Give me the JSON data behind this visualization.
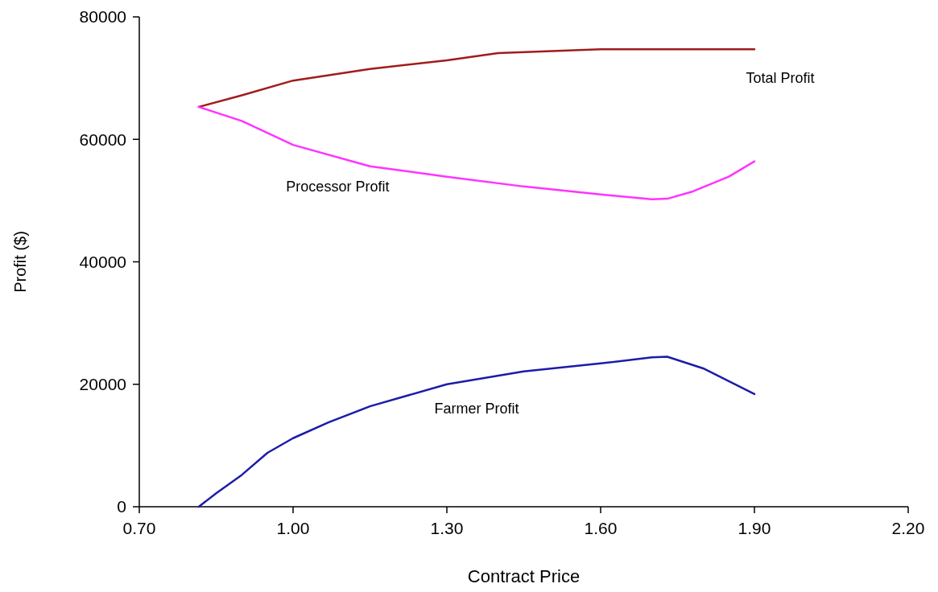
{
  "chart_data": {
    "type": "line",
    "xlabel": "Contract Price",
    "ylabel": "Profit ($)",
    "xlim": [
      0.7,
      2.2
    ],
    "xticks": [
      {
        "value": 0.7,
        "label": "0.70"
      },
      {
        "value": 1.0,
        "label": "1.00"
      },
      {
        "value": 1.3,
        "label": "1.30"
      },
      {
        "value": 1.6,
        "label": "1.60"
      },
      {
        "value": 1.9,
        "label": "1.90"
      },
      {
        "value": 2.2,
        "label": "2.20"
      }
    ],
    "ylim": [
      0,
      80000
    ],
    "yticks": [
      0,
      20000,
      40000,
      60000,
      80000
    ],
    "grid": false,
    "marker": "none",
    "line_style": "solid",
    "series": [
      {
        "name": "Total Profit",
        "color": "#a01c1c",
        "x": [
          0.816,
          0.9,
          1.0,
          1.15,
          1.3,
          1.4,
          1.6,
          1.75,
          1.9
        ],
        "values": [
          65300,
          67200,
          69600,
          71500,
          72900,
          74100,
          74700,
          74700,
          74700
        ]
      },
      {
        "name": "Processor Profit",
        "color": "#ff33ff",
        "x": [
          0.816,
          0.9,
          1.0,
          1.15,
          1.3,
          1.45,
          1.6,
          1.7,
          1.73,
          1.78,
          1.85,
          1.9
        ],
        "values": [
          65300,
          63000,
          59100,
          55600,
          53900,
          52300,
          51000,
          50200,
          50300,
          51500,
          53900,
          56400
        ]
      },
      {
        "name": "Farmer Profit",
        "color": "#1c1ca8",
        "x": [
          0.816,
          0.85,
          0.9,
          0.95,
          1.0,
          1.07,
          1.15,
          1.3,
          1.45,
          1.6,
          1.7,
          1.73,
          1.8,
          1.9
        ],
        "values": [
          0,
          2200,
          5200,
          8800,
          11200,
          13800,
          16400,
          20000,
          22100,
          23400,
          24400,
          24500,
          22600,
          18400
        ]
      }
    ]
  }
}
